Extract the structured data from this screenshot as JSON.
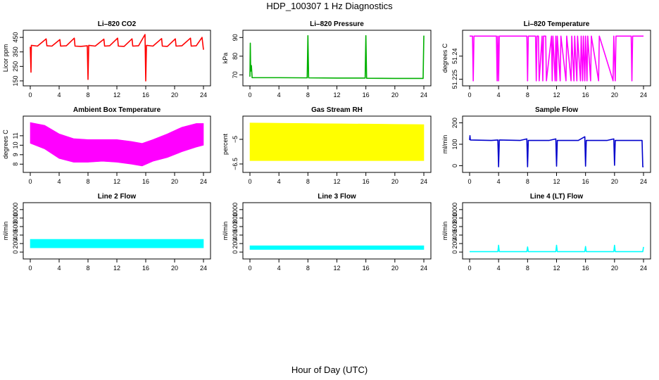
{
  "figure": {
    "title": "HDP_100307 1 Hz Diagnostics",
    "xlabel": "Hour of Day (UTC)"
  },
  "chart_data": [
    {
      "type": "line",
      "title": "Li–820 CO2",
      "ylabel": "Licor ppm",
      "xlabel": "",
      "color": "#ff0000",
      "xlim": [
        0,
        24
      ],
      "ylim": [
        140,
        475
      ],
      "xticks": [
        0,
        4,
        8,
        12,
        16,
        20,
        24
      ],
      "yticks": [
        150,
        250,
        350,
        450
      ],
      "series": [
        {
          "name": "",
          "x": [
            0,
            0.1,
            0.15,
            1,
            2.2,
            2.3,
            3,
            4.1,
            4.2,
            5,
            6.1,
            6.2,
            7,
            7.9,
            8.0,
            8.1,
            9,
            10.2,
            10.3,
            11,
            12.1,
            12.2,
            13,
            14.1,
            14.2,
            15,
            15.9,
            16.0,
            16.1,
            17,
            18.2,
            18.3,
            19,
            20.1,
            20.2,
            21,
            22.2,
            22.3,
            23,
            23.8,
            24
          ],
          "y": [
            385,
            210,
            395,
            390,
            440,
            392,
            390,
            435,
            390,
            392,
            445,
            390,
            388,
            392,
            160,
            395,
            390,
            438,
            390,
            392,
            445,
            390,
            388,
            440,
            390,
            392,
            470,
            150,
            395,
            390,
            442,
            390,
            388,
            440,
            390,
            392,
            445,
            390,
            392,
            450,
            365
          ]
        }
      ]
    },
    {
      "type": "line",
      "title": "Li–820 Pressure",
      "ylabel": "kPa",
      "xlabel": "",
      "color": "#00b000",
      "xlim": [
        0,
        24
      ],
      "ylim": [
        66,
        92
      ],
      "xticks": [
        0,
        4,
        8,
        12,
        16,
        20,
        24
      ],
      "yticks": [
        70,
        80,
        90
      ],
      "series": [
        {
          "name": "",
          "x": [
            0,
            0.05,
            0.1,
            0.2,
            0.3,
            1,
            4,
            7.9,
            8.0,
            8.1,
            12,
            15.9,
            16.0,
            16.1,
            20,
            23.9,
            24
          ],
          "y": [
            69,
            87,
            72,
            75,
            68.5,
            68.5,
            68.5,
            68.4,
            91,
            68.4,
            68.3,
            68.3,
            91,
            68.2,
            68.1,
            68.1,
            91
          ]
        }
      ]
    },
    {
      "type": "line",
      "title": "Li–820 Temperature",
      "ylabel": "degrees C",
      "xlabel": "",
      "color": "#ff00ff",
      "xlim": [
        0,
        24
      ],
      "ylim": [
        51.223,
        51.2545
      ],
      "xticks": [
        0,
        4,
        8,
        12,
        16,
        20,
        24
      ],
      "yticks": [
        51.225,
        51.24
      ],
      "series": [
        {
          "name": "",
          "x": [
            0,
            0.4,
            0.5,
            0.6,
            3.7,
            3.8,
            3.9,
            4.0,
            4.1,
            7.9,
            8.0,
            8.1,
            9.1,
            9.2,
            9.3,
            9.5,
            9.6,
            10.0,
            10.1,
            10.2,
            10.5,
            10.6,
            11.3,
            11.4,
            11.5,
            11.8,
            11.9,
            12.0,
            12.1,
            12.5,
            12.6,
            13.3,
            13.4,
            14.0,
            14.1,
            14.4,
            14.5,
            14.8,
            14.9,
            15.3,
            15.4,
            15.6,
            15.7,
            15.9,
            16.0,
            16.2,
            16.3,
            16.7,
            16.8,
            17.8,
            17.9,
            19.8,
            19.9,
            20.1,
            20.2,
            22.3,
            22.4,
            22.5,
            24
          ],
          "y": [
            51.253,
            51.253,
            51.224,
            51.253,
            51.253,
            51.224,
            51.253,
            51.224,
            51.253,
            51.253,
            51.224,
            51.253,
            51.253,
            51.224,
            51.253,
            51.253,
            51.224,
            51.253,
            51.224,
            51.253,
            51.253,
            51.224,
            51.253,
            51.224,
            51.253,
            51.224,
            51.253,
            51.224,
            51.253,
            51.224,
            51.253,
            51.224,
            51.253,
            51.224,
            51.253,
            51.224,
            51.253,
            51.224,
            51.253,
            51.224,
            51.253,
            51.224,
            51.253,
            51.224,
            51.253,
            51.224,
            51.253,
            51.224,
            51.253,
            51.224,
            51.253,
            51.224,
            51.253,
            51.224,
            51.253,
            51.253,
            51.224,
            51.253,
            51.253
          ]
        }
      ]
    },
    {
      "type": "area",
      "title": "Ambient Box Temperature",
      "ylabel": "degrees C",
      "xlabel": "",
      "color": "#ff00ff",
      "xlim": [
        0,
        24
      ],
      "ylim": [
        7.5,
        12.7
      ],
      "xticks": [
        0,
        4,
        8,
        12,
        16,
        20,
        24
      ],
      "yticks": [
        8,
        9,
        10,
        11
      ],
      "series": [
        {
          "name": "",
          "x": [
            0,
            2,
            4,
            6,
            8,
            10,
            12,
            14,
            15.5,
            17,
            19,
            21,
            23,
            24
          ],
          "y": [
            12.4,
            12.1,
            11.2,
            10.7,
            10.6,
            10.6,
            10.6,
            10.4,
            10.2,
            10.6,
            11.2,
            11.9,
            12.3,
            12.3
          ]
        },
        {
          "name": "",
          "x": [
            0,
            2,
            4,
            6,
            8,
            10,
            12,
            14,
            15.5,
            17,
            19,
            21,
            23,
            24
          ],
          "y": [
            10.2,
            9.6,
            8.6,
            8.2,
            8.2,
            8.3,
            8.2,
            8.0,
            7.8,
            8.3,
            8.7,
            9.3,
            9.8,
            10.0
          ]
        }
      ]
    },
    {
      "type": "area",
      "title": "Gas Stream RH",
      "ylabel": "percent",
      "xlabel": "",
      "color": "#ffff00",
      "xlim": [
        0,
        24
      ],
      "ylim": [
        -6.8,
        -3.8
      ],
      "xticks": [
        0,
        4,
        8,
        12,
        16,
        20,
        24
      ],
      "yticks": [
        -6.5,
        -5.0
      ],
      "series": [
        {
          "name": "",
          "x": [
            0,
            24
          ],
          "y": [
            -4.0,
            -4.1
          ]
        },
        {
          "name": "",
          "x": [
            0,
            24
          ],
          "y": [
            -6.3,
            -6.3
          ]
        }
      ]
    },
    {
      "type": "line",
      "title": "Sample Flow",
      "ylabel": "ml/min",
      "xlabel": "",
      "color": "#0000cc",
      "xlim": [
        0,
        24
      ],
      "ylim": [
        -15,
        215
      ],
      "xticks": [
        0,
        4,
        8,
        12,
        16,
        20,
        24
      ],
      "yticks": [
        0,
        100,
        200
      ],
      "series": [
        {
          "name": "",
          "x": [
            0,
            0.05,
            0.1,
            3,
            3.9,
            4.0,
            4.1,
            7,
            7.9,
            8.0,
            8.1,
            11,
            11.9,
            12.0,
            12.1,
            15,
            15.9,
            16.0,
            16.1,
            19,
            19.9,
            20.0,
            20.1,
            23,
            23.8,
            23.9,
            24
          ],
          "y": [
            120,
            140,
            120,
            118,
            120,
            -5,
            120,
            118,
            125,
            -5,
            118,
            118,
            125,
            -2,
            118,
            118,
            135,
            -2,
            118,
            118,
            125,
            2,
            118,
            118,
            118,
            -5,
            -5
          ]
        }
      ]
    },
    {
      "type": "area",
      "title": "Line 2 Flow",
      "ylabel": "ml/min",
      "xlabel": "",
      "color": "#00ffff",
      "xlim": [
        0,
        24
      ],
      "ylim": [
        -80,
        1080
      ],
      "xticks": [
        0,
        4,
        8,
        12,
        16,
        20,
        24
      ],
      "yticks": [
        0,
        200,
        400,
        600,
        800,
        1000
      ],
      "series": [
        {
          "name": "",
          "x": [
            0,
            24
          ],
          "y": [
            300,
            300
          ]
        },
        {
          "name": "",
          "x": [
            0,
            24
          ],
          "y": [
            100,
            100
          ]
        }
      ]
    },
    {
      "type": "area",
      "title": "Line 3 Flow",
      "ylabel": "ml/min",
      "xlabel": "",
      "color": "#00ffff",
      "xlim": [
        0,
        24
      ],
      "ylim": [
        -80,
        1080
      ],
      "xticks": [
        0,
        4,
        8,
        12,
        16,
        20,
        24
      ],
      "yticks": [
        0,
        200,
        400,
        600,
        800,
        1000
      ],
      "series": [
        {
          "name": "",
          "x": [
            0,
            24
          ],
          "y": [
            150,
            150
          ]
        },
        {
          "name": "",
          "x": [
            0,
            24
          ],
          "y": [
            60,
            60
          ]
        }
      ]
    },
    {
      "type": "line",
      "title": "Line 4 (LT) Flow",
      "ylabel": "ml/min",
      "xlabel": "",
      "color": "#00ffff",
      "xlim": [
        0,
        24
      ],
      "ylim": [
        -80,
        1080
      ],
      "xticks": [
        0,
        4,
        8,
        12,
        16,
        20,
        24
      ],
      "yticks": [
        0,
        200,
        400,
        600,
        800,
        1000
      ],
      "series": [
        {
          "name": "",
          "x": [
            0,
            3.9,
            4.0,
            4.1,
            7.9,
            8.0,
            8.1,
            11.9,
            12.0,
            12.1,
            15.9,
            16.0,
            16.1,
            19.9,
            20.0,
            20.1,
            23.9,
            24.0
          ],
          "y": [
            10,
            10,
            160,
            10,
            10,
            120,
            10,
            10,
            160,
            10,
            10,
            130,
            10,
            10,
            160,
            10,
            10,
            120
          ]
        }
      ]
    }
  ]
}
